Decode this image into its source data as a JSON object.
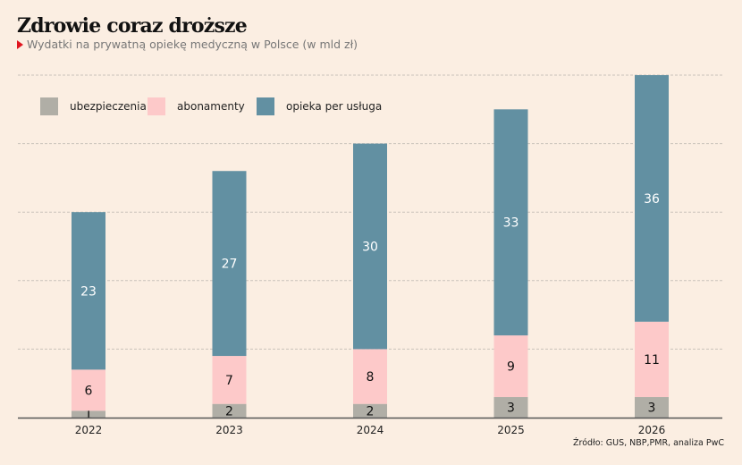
{
  "chart_data": {
    "type": "bar",
    "stacked": true,
    "title": "Zdrowie coraz droższe",
    "subtitle": "Wydatki na prywatną opiekę medyczną w Polsce (w mld zł)",
    "categories": [
      "2022",
      "2023",
      "2024",
      "2025",
      "2026"
    ],
    "series": [
      {
        "name": "ubezpieczenia",
        "color": "#b0aea6",
        "label_color": "#111111",
        "values": [
          1,
          2,
          2,
          3,
          3
        ]
      },
      {
        "name": "abonamenty",
        "color": "#fdc9c9",
        "label_color": "#111111",
        "values": [
          6,
          7,
          8,
          9,
          11
        ]
      },
      {
        "name": "opieka per usługa",
        "color": "#6290a2",
        "label_color": "#ffffff",
        "values": [
          23,
          27,
          30,
          33,
          36
        ]
      }
    ],
    "ylim": [
      0,
      50
    ],
    "gridlines": [
      10,
      20,
      30,
      40,
      50
    ],
    "grid": true,
    "legend": "top-left",
    "xlabel": "",
    "ylabel": "",
    "source": "Źródło: GUS, NBP,PMR, analiza PwC"
  }
}
